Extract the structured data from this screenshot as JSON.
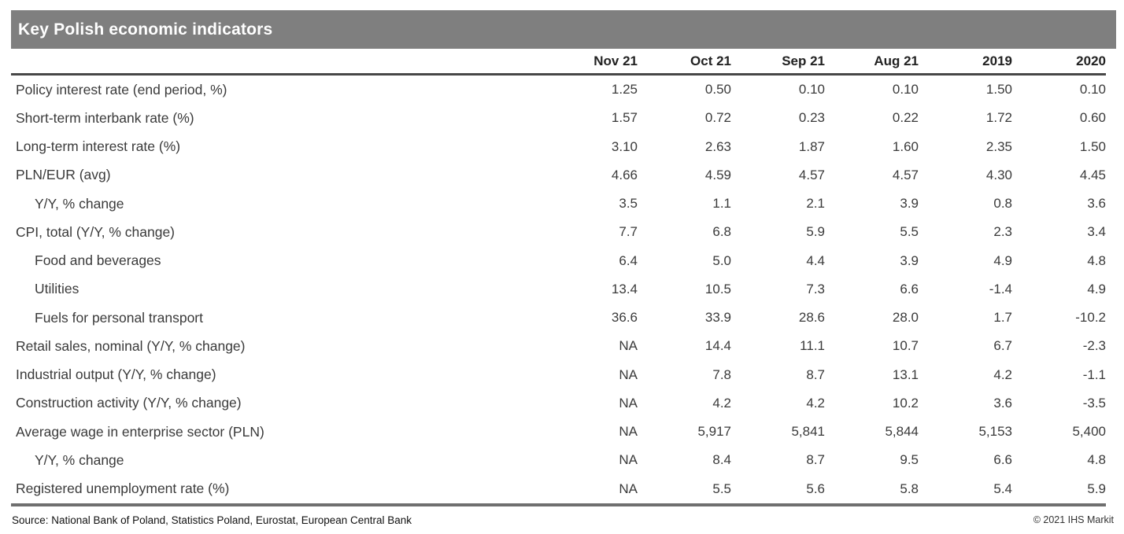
{
  "title": "Key Polish economic indicators",
  "footer": {
    "source": "Source: National Bank of Poland, Statistics Poland, Eurostat, European Central Bank",
    "copyright": "© 2021 IHS Markit"
  },
  "colors": {
    "title_bar_gray": "#7f7f7f",
    "header_rule_dark": "#474747",
    "bottom_rule_gray": "#6f6f6f",
    "body_text": "#3a3a3a",
    "title_text": "#ffffff"
  },
  "chart_data": {
    "type": "table",
    "title": "Key Polish economic indicators",
    "columns": [
      "Nov 21",
      "Oct 21",
      "Sep 21",
      "Aug 21",
      "2019",
      "2020"
    ],
    "rows": [
      {
        "label": "Policy interest rate (end period, %)",
        "indent": false,
        "values": [
          "1.25",
          "0.50",
          "0.10",
          "0.10",
          "1.50",
          "0.10"
        ]
      },
      {
        "label": "Short-term interbank rate (%)",
        "indent": false,
        "values": [
          "1.57",
          "0.72",
          "0.23",
          "0.22",
          "1.72",
          "0.60"
        ]
      },
      {
        "label": "Long-term interest rate (%)",
        "indent": false,
        "values": [
          "3.10",
          "2.63",
          "1.87",
          "1.60",
          "2.35",
          "1.50"
        ]
      },
      {
        "label": "PLN/EUR (avg)",
        "indent": false,
        "values": [
          "4.66",
          "4.59",
          "4.57",
          "4.57",
          "4.30",
          "4.45"
        ]
      },
      {
        "label": "Y/Y, % change",
        "indent": true,
        "values": [
          "3.5",
          "1.1",
          "2.1",
          "3.9",
          "0.8",
          "3.6"
        ]
      },
      {
        "label": "CPI, total (Y/Y, % change)",
        "indent": false,
        "values": [
          "7.7",
          "6.8",
          "5.9",
          "5.5",
          "2.3",
          "3.4"
        ]
      },
      {
        "label": "Food and beverages",
        "indent": true,
        "values": [
          "6.4",
          "5.0",
          "4.4",
          "3.9",
          "4.9",
          "4.8"
        ]
      },
      {
        "label": "Utilities",
        "indent": true,
        "values": [
          "13.4",
          "10.5",
          "7.3",
          "6.6",
          "-1.4",
          "4.9"
        ]
      },
      {
        "label": "Fuels for personal transport",
        "indent": true,
        "values": [
          "36.6",
          "33.9",
          "28.6",
          "28.0",
          "1.7",
          "-10.2"
        ]
      },
      {
        "label": "Retail sales, nominal (Y/Y, % change)",
        "indent": false,
        "values": [
          "NA",
          "14.4",
          "11.1",
          "10.7",
          "6.7",
          "-2.3"
        ]
      },
      {
        "label": "Industrial output (Y/Y, % change)",
        "indent": false,
        "values": [
          "NA",
          "7.8",
          "8.7",
          "13.1",
          "4.2",
          "-1.1"
        ]
      },
      {
        "label": "Construction activity (Y/Y, % change)",
        "indent": false,
        "values": [
          "NA",
          "4.2",
          "4.2",
          "10.2",
          "3.6",
          "-3.5"
        ]
      },
      {
        "label": "Average wage in enterprise sector (PLN)",
        "indent": false,
        "values": [
          "NA",
          "5,917",
          "5,841",
          "5,844",
          "5,153",
          "5,400"
        ]
      },
      {
        "label": "Y/Y, % change",
        "indent": true,
        "values": [
          "NA",
          "8.4",
          "8.7",
          "9.5",
          "6.6",
          "4.8"
        ]
      },
      {
        "label": "Registered unemployment rate (%)",
        "indent": false,
        "values": [
          "NA",
          "5.5",
          "5.6",
          "5.8",
          "5.4",
          "5.9"
        ]
      }
    ]
  }
}
